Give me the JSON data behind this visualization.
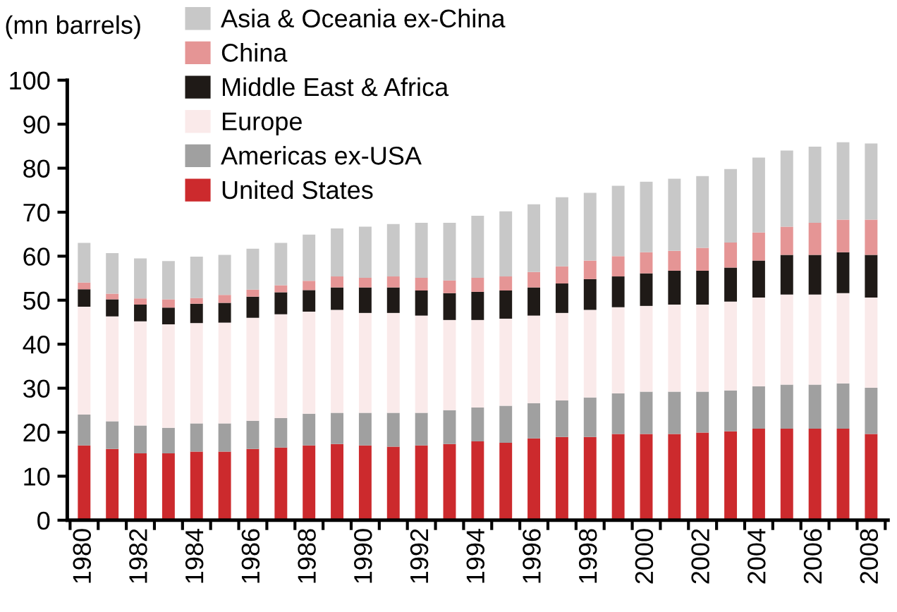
{
  "chart_data": {
    "type": "bar",
    "stacked": true,
    "ylabel": "(mn barrels)",
    "categories": [
      "1980",
      null,
      "1982",
      null,
      "1984",
      null,
      "1986",
      null,
      "1988",
      null,
      "1990",
      null,
      "1992",
      null,
      "1994",
      null,
      "1996",
      null,
      "1998",
      null,
      "2000",
      null,
      "2002",
      null,
      "2004",
      null,
      "2006",
      null,
      "2008"
    ],
    "ylim": [
      0,
      100
    ],
    "yticks": [
      0,
      10,
      20,
      30,
      40,
      50,
      60,
      70,
      80,
      90,
      100
    ],
    "legend": "top left",
    "series": [
      {
        "name": "United States",
        "color": "#cc2a2d",
        "values": [
          17,
          16.2,
          15.2,
          15.2,
          15.6,
          15.6,
          16.2,
          16.5,
          17,
          17.3,
          17.0,
          16.7,
          17.0,
          17.3,
          17.9,
          17.6,
          18.6,
          18.9,
          18.9,
          19.6,
          19.6,
          19.6,
          19.9,
          20.2,
          20.8,
          20.8,
          20.8,
          20.8,
          19.6
        ]
      },
      {
        "name": "Americas ex-USA",
        "color": "#a0a0a0",
        "values": [
          7,
          6.3,
          6.3,
          5.8,
          6.4,
          6.4,
          6.4,
          6.7,
          7.2,
          7.1,
          7.4,
          7.7,
          7.4,
          7.7,
          7.7,
          8.4,
          8.0,
          8.3,
          9.0,
          9.2,
          9.6,
          9.6,
          9.3,
          9.3,
          9.6,
          10.0,
          10.0,
          10.3,
          10.5
        ]
      },
      {
        "name": "Europe",
        "color": "#faeaea",
        "values": [
          24.5,
          23.8,
          23.7,
          23.5,
          22.8,
          22.9,
          23.4,
          23.6,
          23.2,
          23.4,
          22.7,
          22.7,
          22.1,
          20.5,
          19.9,
          19.8,
          19.9,
          19.9,
          19.9,
          19.6,
          19.5,
          19.8,
          19.8,
          20.2,
          20.2,
          20.5,
          20.5,
          20.5,
          20.5
        ]
      },
      {
        "name": "Middle East & Africa",
        "color": "#1f1a17",
        "values": [
          4,
          3.9,
          3.8,
          3.8,
          4.4,
          4.5,
          4.8,
          5.0,
          4.9,
          5.1,
          5.8,
          5.8,
          5.7,
          6.1,
          6.4,
          6.4,
          6.4,
          6.7,
          7.0,
          7.0,
          7.4,
          7.7,
          7.7,
          7.7,
          8.4,
          9.0,
          9.0,
          9.3,
          9.7
        ]
      },
      {
        "name": "China",
        "color": "#e59595",
        "values": [
          1.5,
          1.3,
          1.4,
          1.9,
          1.3,
          1.8,
          1.6,
          1.6,
          2.1,
          2.5,
          2.2,
          2.5,
          2.9,
          2.9,
          3.2,
          3.2,
          3.5,
          3.9,
          4.2,
          4.6,
          4.8,
          4.5,
          5.2,
          5.7,
          6.4,
          6.4,
          7.3,
          7.4,
          8.0
        ]
      },
      {
        "name": "Asia & Oceania ex-China",
        "color": "#c8c8c8",
        "values": [
          9,
          9.2,
          9.1,
          8.7,
          9.4,
          9.1,
          9.3,
          9.6,
          10.5,
          10.9,
          11.6,
          11.9,
          12.5,
          13.1,
          14.1,
          14.8,
          15.4,
          15.7,
          15.4,
          16.0,
          16.0,
          16.4,
          16.3,
          16.7,
          17.0,
          17.3,
          17.3,
          17.6,
          17.3
        ]
      }
    ]
  }
}
